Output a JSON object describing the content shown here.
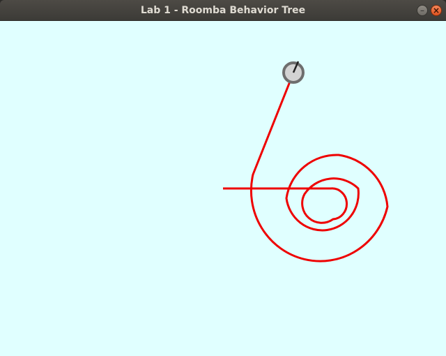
{
  "window": {
    "title": "Lab 1 - Roomba Behavior Tree",
    "minimize_glyph": "–",
    "close_glyph": "×",
    "minimize_icon": "minimize-icon",
    "close_icon": "close-icon"
  },
  "canvas": {
    "background_color": "#e0ffff",
    "path_color": "#ee0000",
    "robot_fill_color": "#d3d3d3",
    "robot_outline_color": "#6e6e6e",
    "heading_line_color": "#222222"
  }
}
